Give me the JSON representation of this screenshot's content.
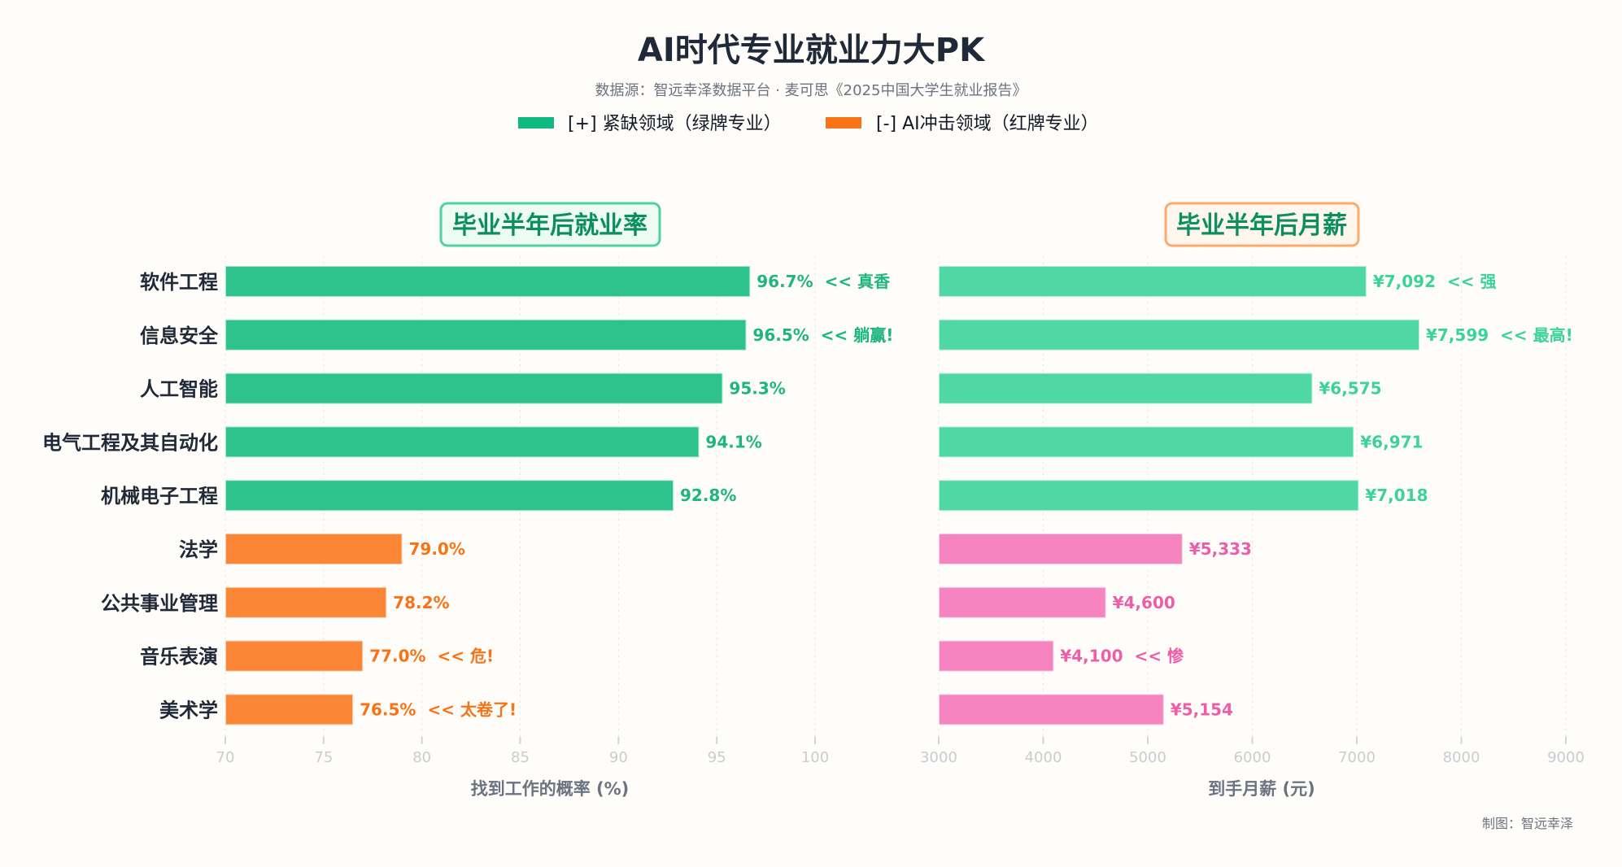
{
  "title": "AI时代专业就业力大PK",
  "subtitle": "数据源：智远幸泽数据平台 · 麦可思《2025中国大学生就业报告》",
  "legend": [
    {
      "label": "[+] 紧缺领域（绿牌专业）",
      "color": "#10b981"
    },
    {
      "label": "[-] AI冲击领域（红牌专业）",
      "color": "#f97316"
    }
  ],
  "footer": "制图：智远幸泽",
  "chart_data": [
    {
      "type": "bar",
      "orientation": "horizontal",
      "title": "毕业半年后就业率",
      "xlabel": "找到工作的概率 (%)",
      "xlim": [
        70,
        100
      ],
      "xticks": [
        "70",
        "75",
        "80",
        "85",
        "90",
        "95",
        "100"
      ],
      "grid": true,
      "categories": [
        "软件工程",
        "信息安全",
        "人工智能",
        "电气工程及其自动化",
        "机械电子工程",
        "法学",
        "公共事业管理",
        "音乐表演",
        "美术学"
      ],
      "values": [
        96.7,
        96.5,
        95.3,
        94.1,
        92.8,
        79.0,
        78.2,
        77.0,
        76.5
      ],
      "value_labels": [
        "96.7%",
        "96.5%",
        "95.3%",
        "94.1%",
        "92.8%",
        "79.0%",
        "78.2%",
        "77.0%",
        "76.5%"
      ],
      "annotations": [
        "<< 真香",
        "<< 躺赢!",
        "",
        "",
        "",
        "",
        "",
        "<< 危!",
        "<< 太卷了!"
      ],
      "groups": [
        "green",
        "green",
        "green",
        "green",
        "green",
        "red",
        "red",
        "red",
        "red"
      ],
      "colors": {
        "green": "#2ec28e",
        "red": "#fa8636",
        "green_text": "#1fb57f",
        "red_text": "#f97316"
      }
    },
    {
      "type": "bar",
      "orientation": "horizontal",
      "title": "毕业半年后月薪",
      "xlabel": "到手月薪 (元)",
      "xlim": [
        3000,
        9000
      ],
      "xticks": [
        "3000",
        "4000",
        "5000",
        "6000",
        "7000",
        "8000",
        "9000"
      ],
      "grid": true,
      "categories": [
        "软件工程",
        "信息安全",
        "人工智能",
        "电气工程及其自动化",
        "机械电子工程",
        "法学",
        "公共事业管理",
        "音乐表演",
        "美术学"
      ],
      "values": [
        7092,
        7599,
        6575,
        6971,
        7018,
        5333,
        4600,
        4100,
        5154
      ],
      "value_labels": [
        "¥7,092",
        "¥7,599",
        "¥6,575",
        "¥6,971",
        "¥7,018",
        "¥5,333",
        "¥4,600",
        "¥4,100",
        "¥5,154"
      ],
      "annotations": [
        "<< 强",
        "<< 最高!",
        "",
        "",
        "",
        "",
        "",
        "<< 惨",
        ""
      ],
      "groups": [
        "green",
        "green",
        "green",
        "green",
        "green",
        "red",
        "red",
        "red",
        "red"
      ],
      "colors": {
        "green": "#4fd8a3",
        "red": "#f584c0",
        "green_text": "#3cd39a",
        "red_text": "#ec5fa8"
      }
    }
  ]
}
